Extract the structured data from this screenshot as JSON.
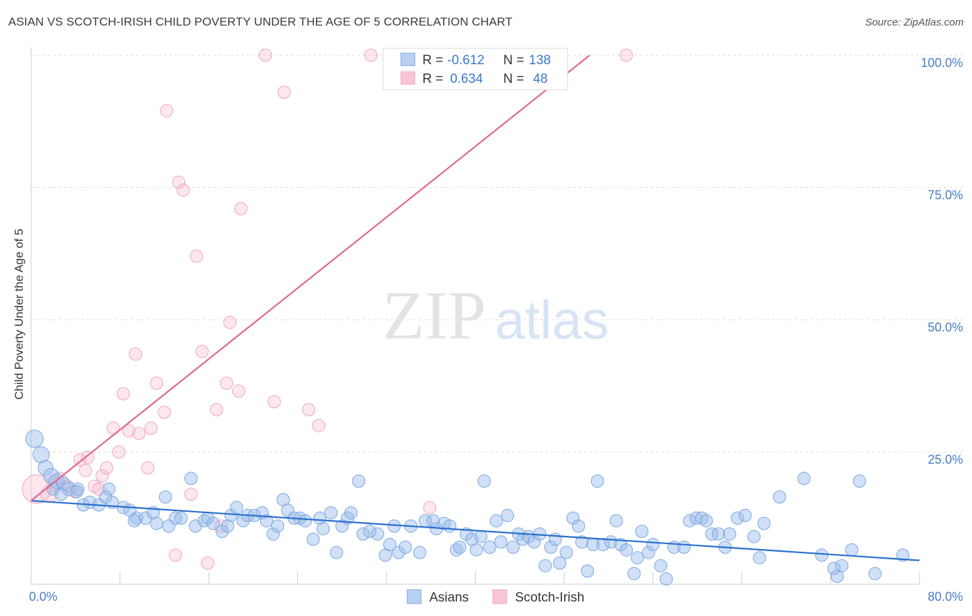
{
  "title": "ASIAN VS SCOTCH-IRISH CHILD POVERTY UNDER THE AGE OF 5 CORRELATION CHART",
  "source": "Source: ZipAtlas.com",
  "watermark": {
    "zip": "ZIP",
    "atlas": "atlas"
  },
  "colors": {
    "asian": "#7aa6e0",
    "asian_line": "#2a6fcc",
    "scotch": "#f2a2bc",
    "scotch_line": "#e0668f",
    "value_text": "#3b78d0"
  },
  "stats_box": {
    "asian": {
      "r_label": "R =",
      "r_value": "-0.612",
      "n_label": "N =",
      "n_value": "138"
    },
    "scotch": {
      "r_label": "R =",
      "r_value": "0.634",
      "n_label": "N =",
      "n_value": "48"
    }
  },
  "chart_data": {
    "type": "scatter",
    "title": "ASIAN VS SCOTCH-IRISH CHILD POVERTY UNDER THE AGE OF 5 CORRELATION CHART",
    "xlabel": "",
    "ylabel": "Child Poverty Under the Age of 5",
    "xlim": [
      0,
      80
    ],
    "ylim": [
      0,
      100
    ],
    "x_tick_labels": [
      "0.0%",
      "80.0%"
    ],
    "y_tick_values": [
      25,
      50,
      75,
      100
    ],
    "y_tick_labels": [
      "25.0%",
      "50.0%",
      "75.0%",
      "100.0%"
    ],
    "grid": true,
    "legend_position": "bottom-center",
    "series": [
      {
        "name": "Asians",
        "trend": [
          [
            0,
            15.8
          ],
          [
            80,
            4.5
          ]
        ],
        "points": [
          [
            0.3,
            27.5,
            1.4
          ],
          [
            0.9,
            24.5,
            1.3
          ],
          [
            1.3,
            22,
            1.2
          ],
          [
            1.8,
            20.5,
            1.2
          ],
          [
            2.3,
            19.5,
            1.2
          ],
          [
            2.9,
            19,
            1.1
          ],
          [
            3.4,
            18,
            1.1
          ],
          [
            4.2,
            18,
            1.0
          ],
          [
            4.7,
            15,
            1.0
          ],
          [
            5.3,
            15.5,
            1.0
          ],
          [
            6.1,
            15,
            1.0
          ],
          [
            2.0,
            18,
            1.0
          ],
          [
            2.7,
            17,
            1.0
          ],
          [
            4.1,
            17.5,
            1.0
          ],
          [
            7.0,
            18,
            1.0
          ],
          [
            6.7,
            16.5,
            1.0
          ],
          [
            7.3,
            15.5,
            1.0
          ],
          [
            8.3,
            14.5,
            1.0
          ],
          [
            8.9,
            14,
            1.0
          ],
          [
            9.5,
            12.5,
            1.0
          ],
          [
            9.3,
            12,
            1.0
          ],
          [
            10.3,
            12.5,
            1.0
          ],
          [
            11.0,
            13.5,
            1.0
          ],
          [
            11.3,
            11.5,
            1.0
          ],
          [
            12.1,
            16.5,
            1.0
          ],
          [
            12.4,
            11,
            1.0
          ],
          [
            13.0,
            12.5,
            1.0
          ],
          [
            13.5,
            12.5,
            1.0
          ],
          [
            14.4,
            20,
            1.0
          ],
          [
            14.8,
            11,
            1.0
          ],
          [
            15.6,
            12,
            1.0
          ],
          [
            15.9,
            12.5,
            1.0
          ],
          [
            16.4,
            11.5,
            1.0
          ],
          [
            17.2,
            10,
            1.0
          ],
          [
            17.7,
            11,
            1.0
          ],
          [
            18.0,
            13,
            1.0
          ],
          [
            18.5,
            14.5,
            1.0
          ],
          [
            19.1,
            12,
            1.0
          ],
          [
            19.5,
            13,
            1.0
          ],
          [
            20.1,
            13,
            1.0
          ],
          [
            20.8,
            13.5,
            1.0
          ],
          [
            21.2,
            12,
            1.0
          ],
          [
            21.8,
            9.5,
            1.0
          ],
          [
            22.2,
            11,
            1.0
          ],
          [
            22.7,
            16,
            1.0
          ],
          [
            23.1,
            14,
            1.0
          ],
          [
            23.7,
            12.5,
            1.0
          ],
          [
            24.2,
            12.5,
            1.0
          ],
          [
            24.7,
            12,
            1.0
          ],
          [
            25.4,
            8.5,
            1.0
          ],
          [
            26.0,
            12.5,
            1.0
          ],
          [
            26.3,
            10.5,
            1.0
          ],
          [
            27.0,
            13.5,
            1.0
          ],
          [
            27.5,
            6,
            1.0
          ],
          [
            28.0,
            11,
            1.0
          ],
          [
            28.5,
            12.5,
            1.0
          ],
          [
            28.8,
            13.5,
            1.0
          ],
          [
            29.5,
            19.5,
            1.0
          ],
          [
            29.9,
            9.5,
            1.0
          ],
          [
            30.5,
            10,
            1.0
          ],
          [
            31.2,
            9.5,
            1.0
          ],
          [
            31.9,
            5.5,
            1.0
          ],
          [
            32.3,
            7.5,
            1.0
          ],
          [
            32.7,
            11,
            1.0
          ],
          [
            33.1,
            6,
            1.0
          ],
          [
            33.7,
            7,
            1.0
          ],
          [
            34.2,
            11,
            1.0
          ],
          [
            35.0,
            6,
            1.0
          ],
          [
            35.5,
            12,
            1.0
          ],
          [
            36.2,
            12,
            1.0
          ],
          [
            36.5,
            10.5,
            1.0
          ],
          [
            37.2,
            11.5,
            1.0
          ],
          [
            37.7,
            11,
            1.0
          ],
          [
            38.3,
            6.5,
            1.0
          ],
          [
            38.6,
            7,
            1.0
          ],
          [
            39.2,
            9.5,
            1.0
          ],
          [
            39.7,
            8.5,
            1.0
          ],
          [
            40.1,
            6.5,
            1.0
          ],
          [
            40.5,
            9,
            1.0
          ],
          [
            40.8,
            19.5,
            1.0
          ],
          [
            41.3,
            7,
            1.0
          ],
          [
            41.9,
            12,
            1.0
          ],
          [
            42.3,
            8,
            1.0
          ],
          [
            42.9,
            13,
            1.0
          ],
          [
            43.4,
            7,
            1.0
          ],
          [
            43.9,
            9.5,
            1.0
          ],
          [
            44.3,
            8.5,
            1.0
          ],
          [
            44.8,
            9,
            1.0
          ],
          [
            45.3,
            8,
            1.0
          ],
          [
            45.8,
            9.5,
            1.0
          ],
          [
            46.3,
            3.5,
            1.0
          ],
          [
            46.8,
            7,
            1.0
          ],
          [
            47.2,
            8.5,
            1.0
          ],
          [
            47.6,
            4,
            1.0
          ],
          [
            48.2,
            6,
            1.0
          ],
          [
            48.8,
            12.5,
            1.0
          ],
          [
            49.3,
            11,
            1.0
          ],
          [
            49.6,
            8,
            1.0
          ],
          [
            50.1,
            2.5,
            1.0
          ],
          [
            50.6,
            7.5,
            1.0
          ],
          [
            51.0,
            19.5,
            1.0
          ],
          [
            51.5,
            7.5,
            1.0
          ],
          [
            52.2,
            8,
            1.0
          ],
          [
            52.7,
            12,
            1.0
          ],
          [
            53.1,
            7.5,
            1.0
          ],
          [
            53.6,
            6.5,
            1.0
          ],
          [
            54.3,
            2,
            1.0
          ],
          [
            54.6,
            5,
            1.0
          ],
          [
            55.0,
            10,
            1.0
          ],
          [
            55.6,
            6,
            1.0
          ],
          [
            56.0,
            7.5,
            1.0
          ],
          [
            56.7,
            3.5,
            1.0
          ],
          [
            57.2,
            1,
            1.0
          ],
          [
            57.9,
            7,
            1.0
          ],
          [
            58.8,
            7,
            1.0
          ],
          [
            59.3,
            12,
            1.0
          ],
          [
            59.9,
            12.5,
            1.0
          ],
          [
            60.4,
            12.5,
            1.0
          ],
          [
            60.8,
            12,
            1.0
          ],
          [
            61.3,
            9.5,
            1.0
          ],
          [
            61.9,
            9.5,
            1.0
          ],
          [
            62.5,
            7,
            1.0
          ],
          [
            62.9,
            9.5,
            1.0
          ],
          [
            63.6,
            12.5,
            1.0
          ],
          [
            64.3,
            13,
            1.0
          ],
          [
            65.1,
            9,
            1.0
          ],
          [
            65.6,
            5,
            1.0
          ],
          [
            66.0,
            11.5,
            1.0
          ],
          [
            67.4,
            16.5,
            1.0
          ],
          [
            69.6,
            20,
            1.0
          ],
          [
            71.2,
            5.5,
            1.0
          ],
          [
            72.3,
            3,
            1.0
          ],
          [
            72.6,
            1.5,
            1.0
          ],
          [
            73.0,
            3.5,
            1.0
          ],
          [
            73.9,
            6.5,
            1.0
          ],
          [
            74.6,
            19.5,
            1.0
          ],
          [
            76.0,
            2,
            1.0
          ],
          [
            78.5,
            5.5,
            1.0
          ]
        ]
      },
      {
        "name": "Scotch-Irish",
        "trend": [
          [
            0,
            15.8
          ],
          [
            50.3,
            100
          ]
        ],
        "points": [
          [
            0.5,
            18,
            2.3
          ],
          [
            1.6,
            17,
            1.3
          ],
          [
            2.1,
            19,
            1.2
          ],
          [
            2.6,
            20,
            1.0
          ],
          [
            3.3,
            18.5,
            1.0
          ],
          [
            3.9,
            17.5,
            1.0
          ],
          [
            4.4,
            23.5,
            1.0
          ],
          [
            4.9,
            21.5,
            1.0
          ],
          [
            5.1,
            24,
            1.0
          ],
          [
            5.7,
            18.5,
            1.0
          ],
          [
            6.1,
            18,
            1.0
          ],
          [
            6.4,
            20.5,
            1.0
          ],
          [
            6.8,
            22,
            1.0
          ],
          [
            7.4,
            29.5,
            1.0
          ],
          [
            7.9,
            25,
            1.0
          ],
          [
            8.3,
            36,
            1.0
          ],
          [
            8.8,
            29,
            1.0
          ],
          [
            9.4,
            43.5,
            1.0
          ],
          [
            9.7,
            28.5,
            1.0
          ],
          [
            10.5,
            22,
            1.0
          ],
          [
            10.8,
            29.5,
            1.0
          ],
          [
            11.3,
            38,
            1.0
          ],
          [
            12.0,
            32.5,
            1.0
          ],
          [
            12.2,
            89.5,
            1.0
          ],
          [
            13.0,
            5.5,
            1.0
          ],
          [
            13.3,
            76,
            1.0
          ],
          [
            13.7,
            74.5,
            1.0
          ],
          [
            14.4,
            17,
            1.0
          ],
          [
            14.9,
            62,
            1.0
          ],
          [
            15.4,
            44,
            1.0
          ],
          [
            15.9,
            4,
            1.0
          ],
          [
            16.7,
            33,
            1.0
          ],
          [
            17.1,
            11,
            1.0
          ],
          [
            17.6,
            38,
            1.0
          ],
          [
            17.9,
            49.5,
            1.0
          ],
          [
            18.7,
            36.5,
            1.0
          ],
          [
            18.9,
            71,
            1.0
          ],
          [
            21.1,
            100,
            1.0
          ],
          [
            21.9,
            34.5,
            1.0
          ],
          [
            22.8,
            93,
            1.0
          ],
          [
            25.0,
            33,
            1.0
          ],
          [
            25.9,
            30,
            1.0
          ],
          [
            30.6,
            100,
            1.0
          ],
          [
            35.9,
            14.5,
            1.0
          ],
          [
            39.0,
            100,
            1.0
          ],
          [
            53.6,
            100,
            1.0
          ]
        ]
      }
    ]
  }
}
